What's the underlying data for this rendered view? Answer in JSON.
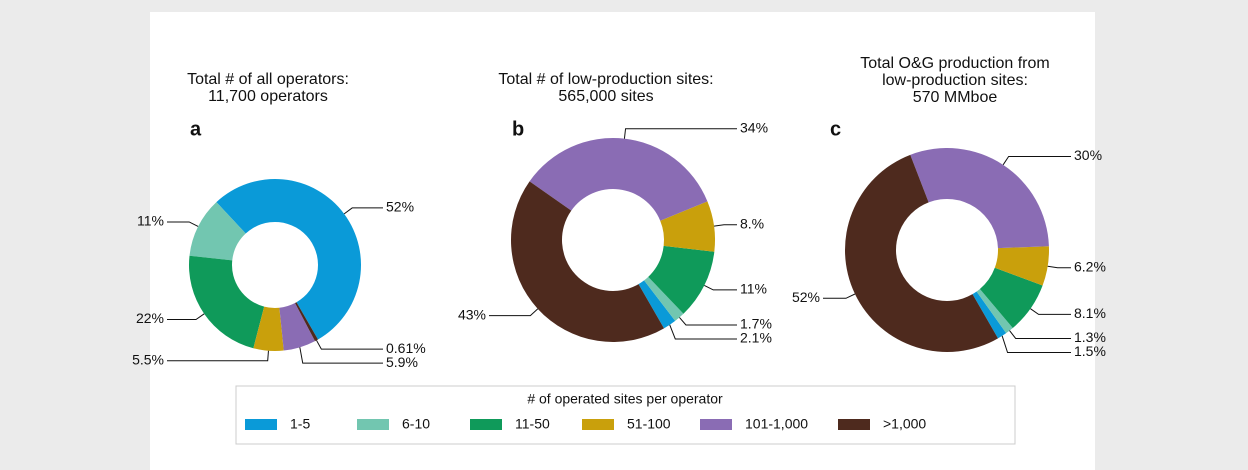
{
  "chart_data": [
    {
      "type": "donut",
      "label": "a",
      "title": [
        "Total # of all operators:",
        "11,700 operators"
      ],
      "categories": [
        "1-5",
        "6-10",
        "11-50",
        "51-100",
        "101-1,000",
        ">1,000"
      ],
      "colors": [
        "#0a9ad8",
        "#72c6b0",
        "#0f9a5a",
        "#c9a00c",
        "#8a6cb4",
        "#4e2a1e"
      ],
      "values": [
        52,
        11,
        22,
        5.5,
        5.9,
        0.61
      ],
      "value_labels": [
        "52%",
        "11%",
        "22%",
        "5.5%",
        "5.9%",
        "0.61%"
      ],
      "legend_title": "# of operated sites per operator"
    },
    {
      "type": "donut",
      "label": "b",
      "title": [
        "Total # of low-production sites:",
        "565,000 sites"
      ],
      "categories": [
        "1-5",
        "6-10",
        "11-50",
        "51-100",
        "101-1,000",
        ">1,000"
      ],
      "colors": [
        "#0a9ad8",
        "#72c6b0",
        "#0f9a5a",
        "#c9a00c",
        "#8a6cb4",
        "#4e2a1e"
      ],
      "values": [
        2.1,
        1.7,
        11,
        8,
        34,
        43
      ],
      "value_labels": [
        "2.1%",
        "1.7%",
        "11%",
        "8.%",
        "34%",
        "43%"
      ]
    },
    {
      "type": "donut",
      "label": "c",
      "title": [
        "Total O&G production from",
        "low-production sites:",
        "570 MMboe"
      ],
      "categories": [
        "1-5",
        "6-10",
        "11-50",
        "51-100",
        "101-1,000",
        ">1,000"
      ],
      "colors": [
        "#0a9ad8",
        "#72c6b0",
        "#0f9a5a",
        "#c9a00c",
        "#8a6cb4",
        "#4e2a1e"
      ],
      "values": [
        1.5,
        1.3,
        8.1,
        6.2,
        30,
        52
      ],
      "value_labels": [
        "1.5%",
        "1.3%",
        "8.1%",
        "6.2%",
        "30%",
        "52%"
      ]
    }
  ]
}
